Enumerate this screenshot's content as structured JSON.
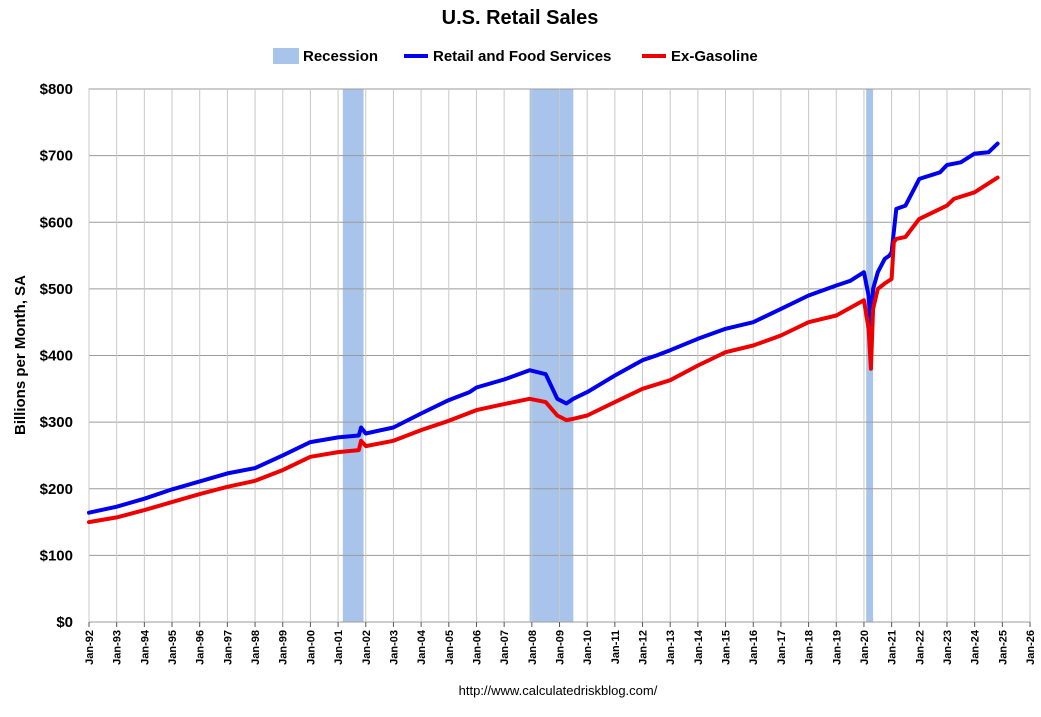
{
  "chart_data": {
    "type": "line",
    "title": "U.S. Retail Sales",
    "ylabel": "Billions per Month, SA",
    "xlabel": "",
    "source": "http://www.calculatedriskblog.com/",
    "x_unit": "decimal year",
    "xlim": [
      1992.0,
      2026.0
    ],
    "ylim": [
      0,
      800
    ],
    "y_ticks": [
      0,
      100,
      200,
      300,
      400,
      500,
      600,
      700,
      800
    ],
    "y_tick_labels": [
      "$0",
      "$100",
      "$200",
      "$300",
      "$400",
      "$500",
      "$600",
      "$700",
      "$800"
    ],
    "x_tick_labels": [
      "Jan-92",
      "Jan-93",
      "Jan-94",
      "Jan-95",
      "Jan-96",
      "Jan-97",
      "Jan-98",
      "Jan-99",
      "Jan-00",
      "Jan-01",
      "Jan-02",
      "Jan-03",
      "Jan-04",
      "Jan-05",
      "Jan-06",
      "Jan-07",
      "Jan-08",
      "Jan-09",
      "Jan-10",
      "Jan-11",
      "Jan-12",
      "Jan-13",
      "Jan-14",
      "Jan-15",
      "Jan-16",
      "Jan-17",
      "Jan-18",
      "Jan-19",
      "Jan-20",
      "Jan-21",
      "Jan-22",
      "Jan-23",
      "Jan-24",
      "Jan-25",
      "Jan-26"
    ],
    "grid": true,
    "legend_position": "top-center",
    "legend": [
      {
        "name": "Recession",
        "type": "band",
        "color": "#a9c4eb"
      },
      {
        "name": "Retail and Food Services",
        "type": "line",
        "color": "#0000ee"
      },
      {
        "name": "Ex-Gasoline",
        "type": "line",
        "color": "#ee0000"
      }
    ],
    "recessions": [
      {
        "start": 2001.17,
        "end": 2001.92
      },
      {
        "start": 2007.92,
        "end": 2009.5
      },
      {
        "start": 2020.08,
        "end": 2020.33
      }
    ],
    "series": [
      {
        "name": "Retail and Food Services",
        "color": "#0000ee",
        "x": [
          1992.0,
          1993.0,
          1994.0,
          1995.0,
          1996.0,
          1997.0,
          1998.0,
          1999.0,
          2000.0,
          2001.0,
          2001.75,
          2001.83,
          2002.0,
          2003.0,
          2004.0,
          2005.0,
          2005.75,
          2006.0,
          2007.0,
          2007.92,
          2008.5,
          2008.92,
          2009.25,
          2009.5,
          2010.0,
          2011.0,
          2012.0,
          2012.5,
          2013.0,
          2014.0,
          2015.0,
          2016.0,
          2017.0,
          2018.0,
          2019.0,
          2019.5,
          2020.0,
          2020.17,
          2020.25,
          2020.33,
          2020.5,
          2020.75,
          2020.92,
          2021.0,
          2021.17,
          2021.5,
          2022.0,
          2022.75,
          2023.0,
          2023.5,
          2024.0,
          2024.5,
          2024.83
        ],
        "values": [
          164,
          173,
          185,
          199,
          211,
          223,
          231,
          250,
          270,
          277,
          280,
          292,
          283,
          292,
          313,
          333,
          345,
          352,
          364,
          378,
          372,
          335,
          328,
          335,
          345,
          370,
          393,
          400,
          408,
          425,
          440,
          450,
          470,
          490,
          505,
          512,
          525,
          490,
          440,
          500,
          525,
          545,
          550,
          555,
          620,
          625,
          665,
          675,
          686,
          690,
          703,
          705,
          718
        ]
      },
      {
        "name": "Ex-Gasoline",
        "color": "#ee0000",
        "x": [
          1992.0,
          1993.0,
          1994.0,
          1995.0,
          1996.0,
          1997.0,
          1998.0,
          1999.0,
          2000.0,
          2001.0,
          2001.75,
          2001.83,
          2002.0,
          2003.0,
          2004.0,
          2005.0,
          2006.0,
          2007.0,
          2007.92,
          2008.5,
          2008.92,
          2009.25,
          2009.5,
          2010.0,
          2011.0,
          2012.0,
          2013.0,
          2014.0,
          2015.0,
          2016.0,
          2017.0,
          2018.0,
          2019.0,
          2020.0,
          2020.17,
          2020.25,
          2020.33,
          2020.5,
          2020.75,
          2021.0,
          2021.08,
          2021.17,
          2021.5,
          2022.0,
          2023.0,
          2023.25,
          2024.0,
          2024.83
        ],
        "values": [
          150,
          157,
          168,
          180,
          192,
          203,
          212,
          228,
          248,
          255,
          258,
          272,
          264,
          272,
          288,
          302,
          318,
          327,
          335,
          330,
          310,
          303,
          305,
          310,
          330,
          350,
          363,
          385,
          405,
          415,
          430,
          450,
          460,
          483,
          440,
          380,
          470,
          500,
          508,
          515,
          570,
          575,
          578,
          605,
          625,
          635,
          645,
          667
        ]
      }
    ]
  }
}
